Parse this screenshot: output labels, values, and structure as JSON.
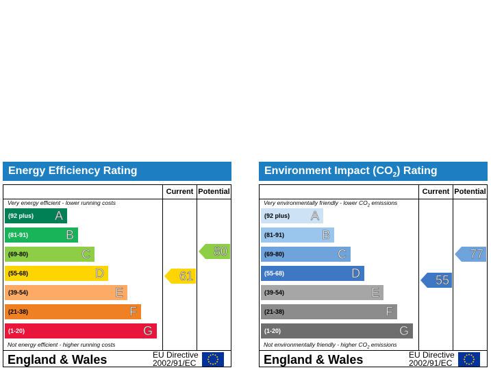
{
  "energy": {
    "title": "Energy Efficiency Rating",
    "col_current": "Current",
    "col_potential": "Potential",
    "top_note": "Very energy efficient - lower running costs",
    "bottom_note": "Not energy efficient - higher running costs",
    "bands": [
      {
        "range": "(92 plus)",
        "letter": "A",
        "color": "#008054"
      },
      {
        "range": "(81-91)",
        "letter": "B",
        "color": "#19b459"
      },
      {
        "range": "(69-80)",
        "letter": "C",
        "color": "#8dce46"
      },
      {
        "range": "(55-68)",
        "letter": "D",
        "color": "#ffd500"
      },
      {
        "range": "(39-54)",
        "letter": "E",
        "color": "#fcaa65"
      },
      {
        "range": "(21-38)",
        "letter": "F",
        "color": "#ef8023"
      },
      {
        "range": "(1-20)",
        "letter": "G",
        "color": "#e9153b"
      }
    ],
    "current": {
      "value": "61",
      "band": "D",
      "color": "#ffd500"
    },
    "potential": {
      "value": "80",
      "band": "C",
      "color": "#8dce46"
    },
    "region": "England & Wales",
    "directive_line1": "EU Directive",
    "directive_line2": "2002/91/EC"
  },
  "environment": {
    "title_pre": "Environment Impact (CO",
    "title_sub": "2",
    "title_post": ") Rating",
    "col_current": "Current",
    "col_potential": "Potential",
    "top_note_pre": "Very environmentally friendly - lower CO",
    "top_note_sub": "2",
    "top_note_post": " emissions",
    "bottom_note_pre": "Not environmentally friendly - higher CO",
    "bottom_note_sub": "2",
    "bottom_note_post": " emissions",
    "bands": [
      {
        "range": "(92 plus)",
        "letter": "A",
        "color": "#cde2f5"
      },
      {
        "range": "(81-91)",
        "letter": "B",
        "color": "#9ac6ee"
      },
      {
        "range": "(69-80)",
        "letter": "C",
        "color": "#6ea3dc"
      },
      {
        "range": "(55-68)",
        "letter": "D",
        "color": "#3e78c5"
      },
      {
        "range": "(39-54)",
        "letter": "E",
        "color": "#a6a6a6"
      },
      {
        "range": "(21-38)",
        "letter": "F",
        "color": "#8c8c8c"
      },
      {
        "range": "(1-20)",
        "letter": "G",
        "color": "#6e6e6e"
      }
    ],
    "current": {
      "value": "55",
      "band": "D",
      "color": "#3e78c5"
    },
    "potential": {
      "value": "77",
      "band": "C",
      "color": "#6ea3dc"
    },
    "region": "England & Wales",
    "directive_line1": "EU Directive",
    "directive_line2": "2002/91/EC"
  }
}
